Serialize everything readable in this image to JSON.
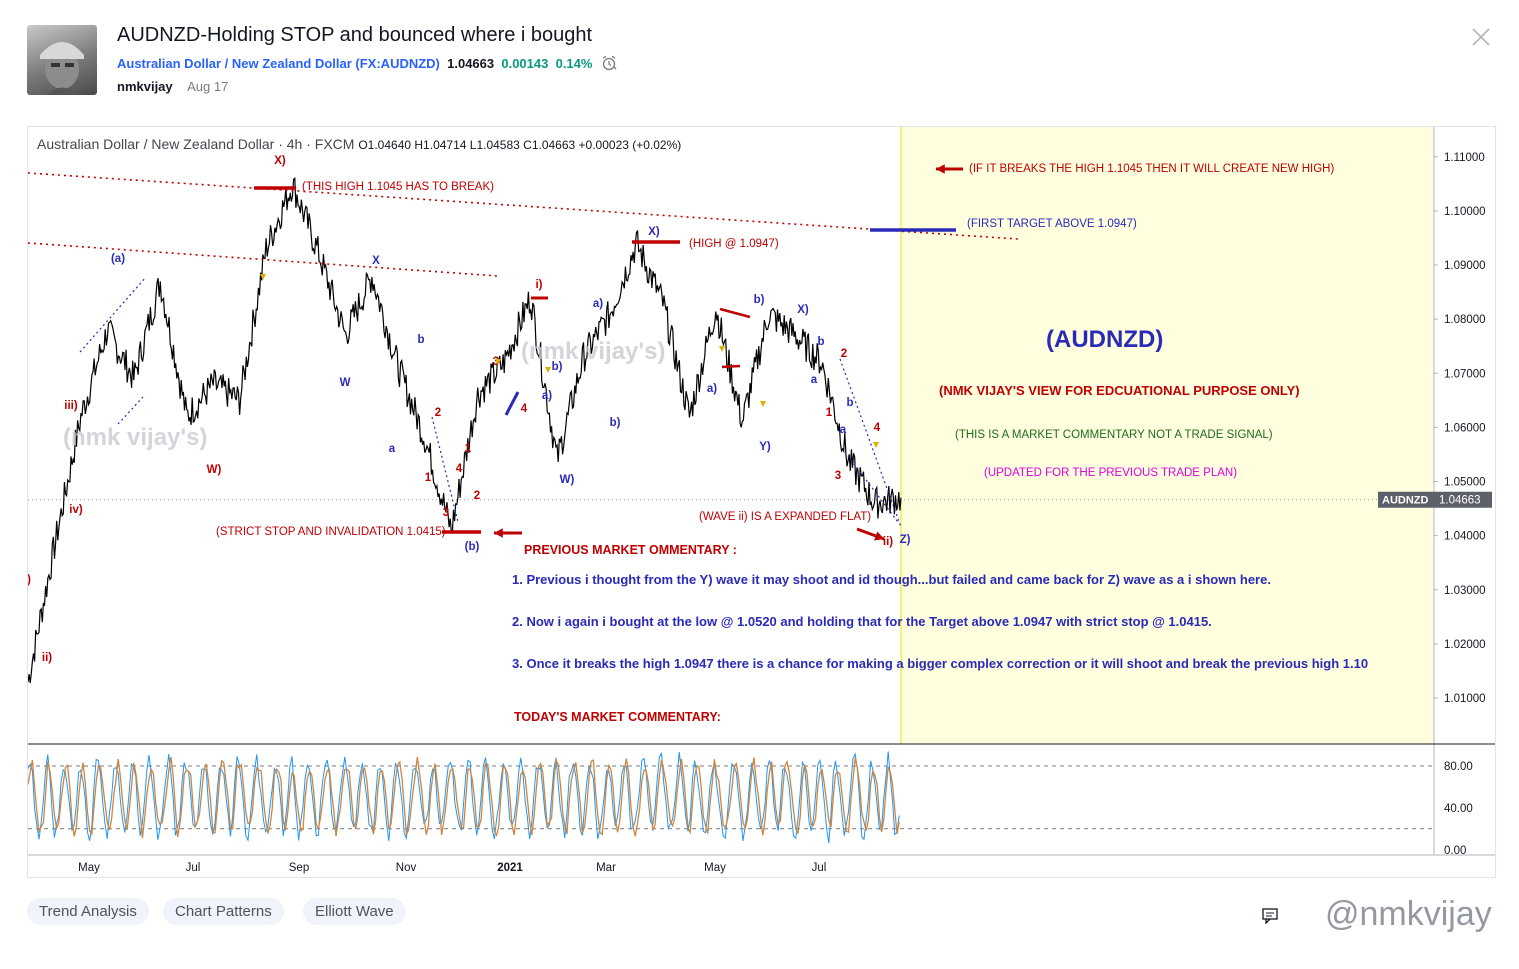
{
  "idea": {
    "title": "AUDNZD-Holding STOP and bounced where i bought",
    "symbol_name": "Australian Dollar / New Zealand Dollar",
    "symbol_code": "(FX:AUDNZD)",
    "price": "1.04663",
    "change": "0.00143",
    "change_pct": "0.14%",
    "author": "nmkvijay",
    "date": "Aug 17",
    "alarm_icon": "alarm-clock-icon",
    "close_icon": "close-icon"
  },
  "chart_legend": {
    "name": "Australian Dollar / New Zealand Dollar · 4h · FXCM",
    "ohlc": "O1.04640 H1.04714 L1.04583 C1.04663 +0.00023 (+0.02%)"
  },
  "chart_data": {
    "type": "line",
    "price_axis_labels": [
      "1.11000",
      "1.10000",
      "1.09000",
      "1.08000",
      "1.07000",
      "1.06000",
      "1.05000",
      "1.04000",
      "1.03000",
      "1.02000",
      "1.01000"
    ],
    "price_ylim": [
      1.0015,
      1.1155
    ],
    "time_axis_labels": [
      "May",
      "Jul",
      "Sep",
      "Nov",
      "2021",
      "Mar",
      "May",
      "Jul"
    ],
    "x": [
      0,
      0.5,
      1,
      1.5,
      2,
      2.5,
      3,
      3.5,
      4,
      4.5,
      5,
      5.5,
      6,
      6.5,
      7,
      7.5,
      8,
      8.5,
      9,
      9.5,
      10,
      10.5,
      11,
      11.5,
      12,
      12.5,
      13,
      13.5,
      14,
      14.5,
      15,
      15.5,
      16,
      16.5
    ],
    "price_series": [
      1.013,
      1.038,
      1.062,
      1.078,
      1.069,
      1.087,
      1.062,
      1.068,
      1.065,
      1.093,
      1.105,
      1.092,
      1.077,
      1.088,
      1.071,
      1.058,
      1.041,
      1.066,
      1.072,
      1.084,
      1.054,
      1.073,
      1.081,
      1.094,
      1.083,
      1.062,
      1.082,
      1.061,
      1.081,
      1.077,
      1.072,
      1.054,
      1.046,
      1.047
    ],
    "last_price_label": "1.04663",
    "last_price_symbol": "AUDNZD",
    "oscillator_axis_labels": [
      "80.00",
      "40.00",
      "0.00"
    ],
    "oscillator_ylim": [
      -5,
      100
    ],
    "oscillator_levels": [
      80,
      20
    ],
    "annotations": {
      "wave_labels": [
        "X)",
        "(a)",
        "iii)",
        "iv)",
        "ii)",
        "W)",
        "X",
        "W",
        "b",
        "a",
        "2",
        "1",
        "3",
        "4",
        "(b)",
        "1",
        "2",
        "3",
        "4",
        "i)",
        "a)",
        "b)",
        "a)",
        "b)",
        "W)",
        "X)",
        "a)",
        "b)",
        "Y)",
        "X)",
        "a",
        "b",
        "2",
        "1",
        "a",
        "b",
        "3",
        "4",
        "Z)",
        "ii)",
        ")"
      ],
      "notes": [
        "(THIS HIGH 1.1045 HAS TO BREAK)",
        "(HIGH @ 1.0947)",
        "(STRICT STOP AND INVALIDATION 1.0415)",
        "(WAVE ii) IS A EXPANDED FLAT)",
        "(IF IT BREAKS THE HIGH 1.1045 THEN IT WILL  CREATE NEW HIGH)",
        "(FIRST TARGET ABOVE 1.0947)",
        "(AUDNZD)",
        "(NMK VIJAY'S VIEW FOR EDCUATIONAL PURPOSE ONLY)",
        "(THIS IS A MARKET COMMENTARY NOT A TRADE SIGNAL)",
        "(UPDATED FOR THE PREVIOUS TRADE PLAN)",
        "PREVIOUS MARKET OMMENTARY :",
        "1. Previous i thought from the Y) wave it may shoot and id though...but failed and came back for Z) wave as a i shown here.",
        "2. Now i again i bought at the low @ 1.0520 and holding that for the Target above 1.0947 with strict stop @ 1.0415.",
        "3. Once it breaks the  high 1.0947 there is a chance for making a bigger complex correction or it will shoot and break the previous high 1.10",
        "TODAY'S MARKET COMMENTARY:"
      ],
      "watermarks": [
        "(nmk vijay's)",
        "(nmk vijay's)"
      ]
    },
    "colors": {
      "price": "#000000",
      "oscillator_k": "#2196f3",
      "oscillator_d": "#cd853f",
      "red": "#c00000",
      "blue": "#2a2ab8",
      "projection_bg": "#ffffe0"
    }
  },
  "tags": [
    "Trend Analysis",
    "Chart Patterns",
    "Elliott Wave"
  ],
  "footer": {
    "watermark": "@nmkvijay",
    "comment_icon": "comment-icon"
  }
}
